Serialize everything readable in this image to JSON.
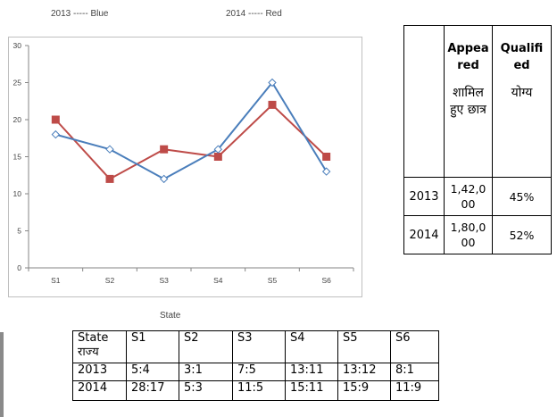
{
  "legend": {
    "l2013": "2013 ----- Blue",
    "l2014": "2014 ----- Red"
  },
  "chart_data": {
    "type": "line",
    "categories": [
      "S1",
      "S2",
      "S3",
      "S4",
      "S5",
      "S6"
    ],
    "series": [
      {
        "name": "2013 ----- Blue",
        "color": "#4a7ebb",
        "marker": "diamond",
        "values": [
          18,
          16,
          12,
          16,
          25,
          13
        ]
      },
      {
        "name": "2014 ----- Red",
        "color": "#be4b48",
        "marker": "square",
        "values": [
          20,
          12,
          16,
          15,
          22,
          15
        ]
      }
    ],
    "yticks": [
      0,
      5,
      10,
      15,
      20,
      25,
      30
    ],
    "ylim": [
      0,
      30
    ],
    "xlabel": "State",
    "ylabel": "",
    "grid": false
  },
  "right_table": {
    "header": {
      "blank": "",
      "appeared_en": "Appea red",
      "appeared_hi": "शामिल हुए छात्र",
      "qualified_en": "Qualifi ed",
      "qualified_hi": "योग्य"
    },
    "rows": [
      {
        "year": "2013",
        "appeared": "1,42,0 00",
        "qualified": "45%"
      },
      {
        "year": "2014",
        "appeared": "1,80,0 00",
        "qualified": "52%"
      }
    ]
  },
  "bottom_table": {
    "header_en": "State",
    "header_hi": "राज्य",
    "states": [
      "S1",
      "S2",
      "S3",
      "S4",
      "S5",
      "S6"
    ],
    "rows": [
      {
        "year": "2013",
        "ratios": [
          "5:4",
          "3:1",
          "7:5",
          "13:11",
          "13:12",
          "8:1"
        ]
      },
      {
        "year": "2014",
        "ratios": [
          "28:17",
          "5:3",
          "11:5",
          "15:11",
          "15:9",
          "11:9"
        ]
      }
    ]
  }
}
